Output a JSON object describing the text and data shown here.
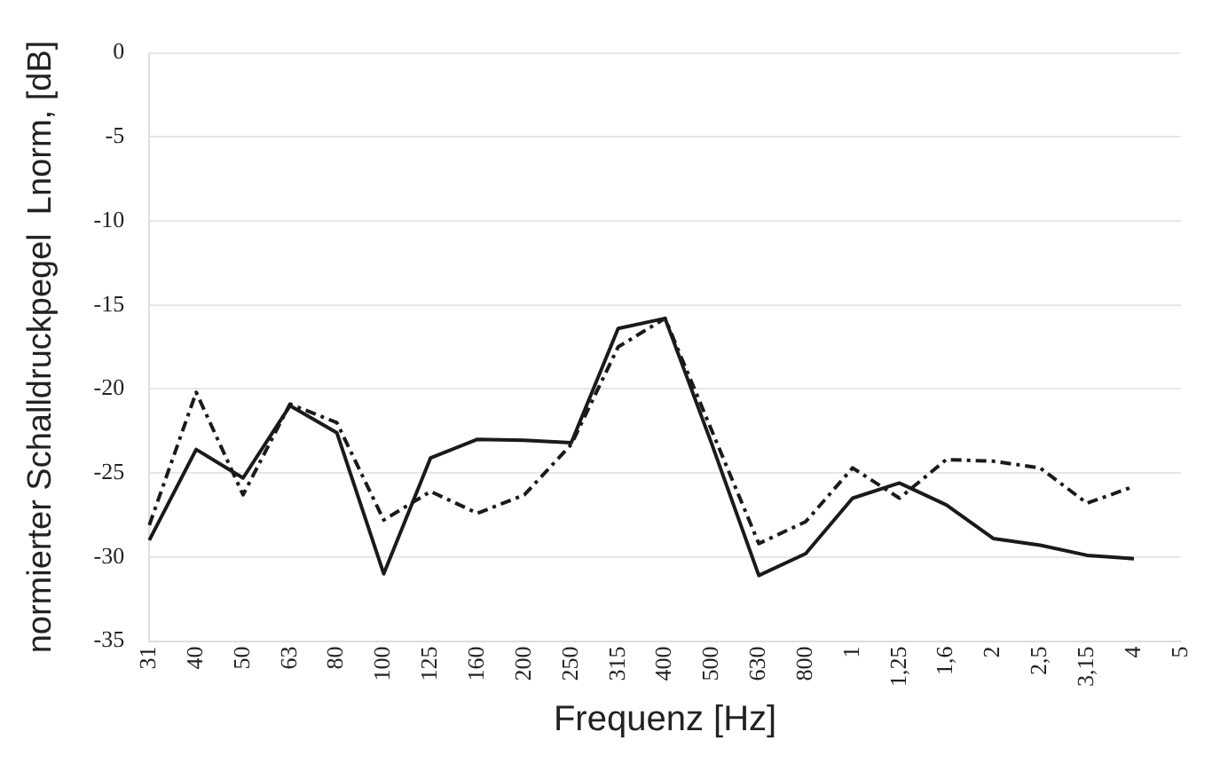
{
  "chart_data": {
    "type": "line",
    "xlabel": "Frequenz [Hz]",
    "ylabel": "normierter Schalldruckpegel  Lnorm, [dB]",
    "categories": [
      "31",
      "40",
      "50",
      "63",
      "80",
      "100",
      "125",
      "160",
      "200",
      "250",
      "315",
      "400",
      "500",
      "630",
      "800",
      "1",
      "1,25",
      "1,6",
      "2",
      "2,5",
      "3,15",
      "4",
      "5"
    ],
    "series": [
      {
        "color": "#1a1a1a",
        "line_style": "solid",
        "values": [
          -29,
          -23.6,
          -25.3,
          -21,
          -22.6,
          -31,
          -24.1,
          -23,
          -23.05,
          -23.2,
          -16.4,
          -15.8,
          -23.3,
          -31.1,
          -29.8,
          -26.5,
          -25.6,
          -26.9,
          -28.9,
          -29.3,
          -29.9,
          -30.1,
          null
        ]
      },
      {
        "color": "#1a1a1a",
        "line_style": "dashed",
        "values": [
          -28.1,
          -20.2,
          -26.3,
          -20.9,
          -22,
          -27.8,
          -26.1,
          -27.4,
          -26.3,
          -23.3,
          -17.5,
          -15.8,
          -22.5,
          -29.2,
          -27.9,
          -24.7,
          -26.5,
          -24.2,
          -24.3,
          -24.7,
          -26.8,
          -25.8,
          null
        ]
      }
    ],
    "ylim": [
      -35,
      0
    ],
    "yticks": [
      -35,
      -30,
      -25,
      -20,
      -15,
      -10,
      -5,
      0
    ],
    "grid": "y",
    "legend": false,
    "marker": "none"
  }
}
